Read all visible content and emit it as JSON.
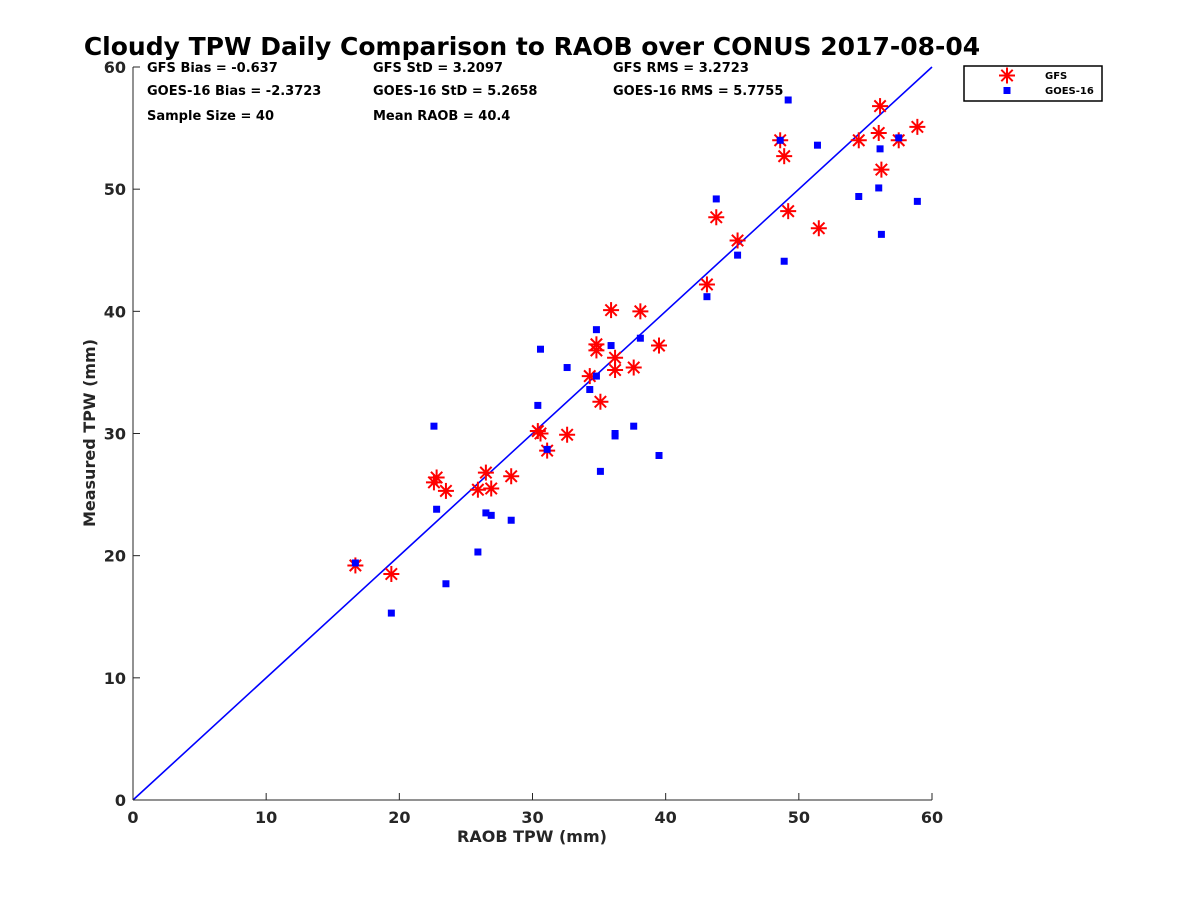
{
  "chart_data": {
    "type": "scatter",
    "title": "Cloudy TPW Daily Comparison to RAOB over CONUS 2017-08-04",
    "xlabel": "RAOB TPW (mm)",
    "ylabel": "Measured TPW (mm)",
    "xlim": [
      0,
      60
    ],
    "ylim": [
      0,
      60
    ],
    "xticks": [
      "0",
      "10",
      "20",
      "30",
      "40",
      "50",
      "60"
    ],
    "yticks": [
      "0",
      "10",
      "20",
      "30",
      "40",
      "50",
      "60"
    ],
    "grid": false,
    "legend_position": "outside-top-right",
    "reference_line": {
      "from": [
        0,
        0
      ],
      "to": [
        60,
        60
      ],
      "color": "#0000ff"
    },
    "stats": [
      [
        "GFS Bias = -0.637",
        "GFS StD = 3.2097",
        "GFS RMS = 3.2723"
      ],
      [
        "GOES-16 Bias = -2.3723",
        "GOES-16 StD = 5.2658",
        "GOES-16 RMS = 5.7755"
      ],
      [
        "Sample Size = 40",
        "Mean RAOB = 40.4",
        ""
      ]
    ],
    "series": [
      {
        "name": "GFS",
        "marker": "asterisk",
        "color": "#ff0000",
        "points": [
          [
            16.7,
            19.2
          ],
          [
            19.4,
            18.5
          ],
          [
            22.6,
            26.0
          ],
          [
            22.8,
            26.4
          ],
          [
            23.5,
            25.3
          ],
          [
            25.9,
            25.4
          ],
          [
            26.5,
            26.8
          ],
          [
            26.9,
            25.5
          ],
          [
            28.4,
            26.5
          ],
          [
            30.4,
            30.2
          ],
          [
            30.6,
            30.0
          ],
          [
            31.1,
            28.6
          ],
          [
            32.6,
            29.9
          ],
          [
            34.3,
            34.7
          ],
          [
            34.8,
            37.3
          ],
          [
            34.8,
            36.8
          ],
          [
            35.1,
            32.6
          ],
          [
            35.9,
            40.1
          ],
          [
            36.2,
            36.2
          ],
          [
            36.2,
            35.2
          ],
          [
            37.6,
            35.4
          ],
          [
            38.1,
            40.0
          ],
          [
            39.5,
            37.2
          ],
          [
            43.1,
            42.2
          ],
          [
            43.8,
            47.7
          ],
          [
            45.4,
            45.8
          ],
          [
            48.6,
            54.0
          ],
          [
            48.9,
            52.7
          ],
          [
            49.2,
            48.2
          ],
          [
            51.5,
            46.8
          ],
          [
            54.5,
            54.0
          ],
          [
            56.0,
            54.6
          ],
          [
            56.1,
            56.8
          ],
          [
            56.2,
            51.6
          ],
          [
            57.5,
            54.0
          ],
          [
            58.9,
            55.1
          ]
        ]
      },
      {
        "name": "GOES-16",
        "marker": "square",
        "color": "#0000ff",
        "points": [
          [
            16.7,
            19.4
          ],
          [
            19.4,
            15.3
          ],
          [
            22.6,
            30.6
          ],
          [
            22.8,
            23.8
          ],
          [
            23.5,
            17.7
          ],
          [
            25.9,
            20.3
          ],
          [
            26.5,
            23.5
          ],
          [
            26.9,
            23.3
          ],
          [
            28.4,
            22.9
          ],
          [
            30.4,
            32.3
          ],
          [
            30.6,
            36.9
          ],
          [
            31.1,
            28.7
          ],
          [
            32.6,
            35.4
          ],
          [
            34.3,
            33.6
          ],
          [
            34.8,
            38.5
          ],
          [
            34.8,
            34.7
          ],
          [
            35.1,
            26.9
          ],
          [
            35.9,
            37.2
          ],
          [
            36.2,
            29.8
          ],
          [
            36.2,
            30.0
          ],
          [
            37.6,
            30.6
          ],
          [
            38.1,
            37.8
          ],
          [
            39.5,
            28.2
          ],
          [
            43.1,
            41.2
          ],
          [
            43.8,
            49.2
          ],
          [
            45.4,
            44.6
          ],
          [
            48.6,
            54.0
          ],
          [
            48.9,
            44.1
          ],
          [
            49.2,
            57.3
          ],
          [
            51.4,
            53.6
          ],
          [
            54.5,
            49.4
          ],
          [
            56.0,
            50.1
          ],
          [
            56.1,
            53.3
          ],
          [
            56.2,
            46.3
          ],
          [
            57.5,
            54.2
          ],
          [
            58.9,
            49.0
          ]
        ]
      }
    ]
  }
}
